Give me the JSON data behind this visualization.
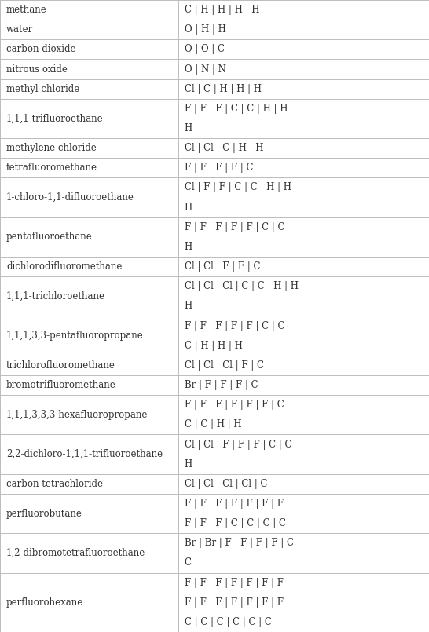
{
  "rows": [
    {
      "name": "methane",
      "elements": [
        "C",
        "H",
        "H",
        "H",
        "H"
      ]
    },
    {
      "name": "water",
      "elements": [
        "O",
        "H",
        "H"
      ]
    },
    {
      "name": "carbon dioxide",
      "elements": [
        "O",
        "O",
        "C"
      ]
    },
    {
      "name": "nitrous oxide",
      "elements": [
        "O",
        "N",
        "N"
      ]
    },
    {
      "name": "methyl chloride",
      "elements": [
        "Cl",
        "C",
        "H",
        "H",
        "H"
      ]
    },
    {
      "name": "1,1,1-trifluoroethane",
      "elements": [
        "F",
        "F",
        "F",
        "C",
        "C",
        "H",
        "H",
        "H"
      ]
    },
    {
      "name": "methylene chloride",
      "elements": [
        "Cl",
        "Cl",
        "C",
        "H",
        "H"
      ]
    },
    {
      "name": "tetrafluoromethane",
      "elements": [
        "F",
        "F",
        "F",
        "F",
        "C"
      ]
    },
    {
      "name": "1-chloro-1,1-difluoroethane",
      "elements": [
        "Cl",
        "F",
        "F",
        "C",
        "C",
        "H",
        "H",
        "H"
      ]
    },
    {
      "name": "pentafluoroethane",
      "elements": [
        "F",
        "F",
        "F",
        "F",
        "F",
        "C",
        "C",
        "H"
      ]
    },
    {
      "name": "dichlorodifluoromethane",
      "elements": [
        "Cl",
        "Cl",
        "F",
        "F",
        "C"
      ]
    },
    {
      "name": "1,1,1-trichloroethane",
      "elements": [
        "Cl",
        "Cl",
        "Cl",
        "C",
        "C",
        "H",
        "H",
        "H"
      ]
    },
    {
      "name": "1,1,1,3,3-pentafluoropropane",
      "elements": [
        "F",
        "F",
        "F",
        "F",
        "F",
        "C",
        "C",
        "C",
        "H",
        "H",
        "H"
      ]
    },
    {
      "name": "trichlorofluoromethane",
      "elements": [
        "Cl",
        "Cl",
        "Cl",
        "F",
        "C"
      ]
    },
    {
      "name": "bromotrifluoromethane",
      "elements": [
        "Br",
        "F",
        "F",
        "F",
        "C"
      ]
    },
    {
      "name": "1,1,1,3,3,3-hexafluoropropane",
      "elements": [
        "F",
        "F",
        "F",
        "F",
        "F",
        "F",
        "C",
        "C",
        "C",
        "H",
        "H"
      ]
    },
    {
      "name": "2,2-dichloro-1,1,1-trifluoroethane",
      "elements": [
        "Cl",
        "Cl",
        "F",
        "F",
        "F",
        "C",
        "C",
        "H"
      ]
    },
    {
      "name": "carbon tetrachloride",
      "elements": [
        "Cl",
        "Cl",
        "Cl",
        "Cl",
        "C"
      ]
    },
    {
      "name": "perfluorobutane",
      "elements": [
        "F",
        "F",
        "F",
        "F",
        "F",
        "F",
        "F",
        "F",
        "F",
        "F",
        "C",
        "C",
        "C",
        "C"
      ]
    },
    {
      "name": "1,2-dibromotetrafluoroethane",
      "elements": [
        "Br",
        "Br",
        "F",
        "F",
        "F",
        "F",
        "C",
        "C"
      ]
    },
    {
      "name": "perfluorohexane",
      "elements": [
        "F",
        "F",
        "F",
        "F",
        "F",
        "F",
        "F",
        "F",
        "F",
        "F",
        "F",
        "F",
        "F",
        "F",
        "C",
        "C",
        "C",
        "C",
        "C",
        "C"
      ]
    }
  ],
  "col_split": 0.415,
  "bg_color": "#ffffff",
  "line_color": "#bbbbbb",
  "text_color": "#333333",
  "font_size": 8.5,
  "separator": " | ",
  "items_per_line": 7,
  "font_family": "DejaVu Serif",
  "fig_width": 5.46,
  "fig_height": 8.05,
  "dpi": 100
}
